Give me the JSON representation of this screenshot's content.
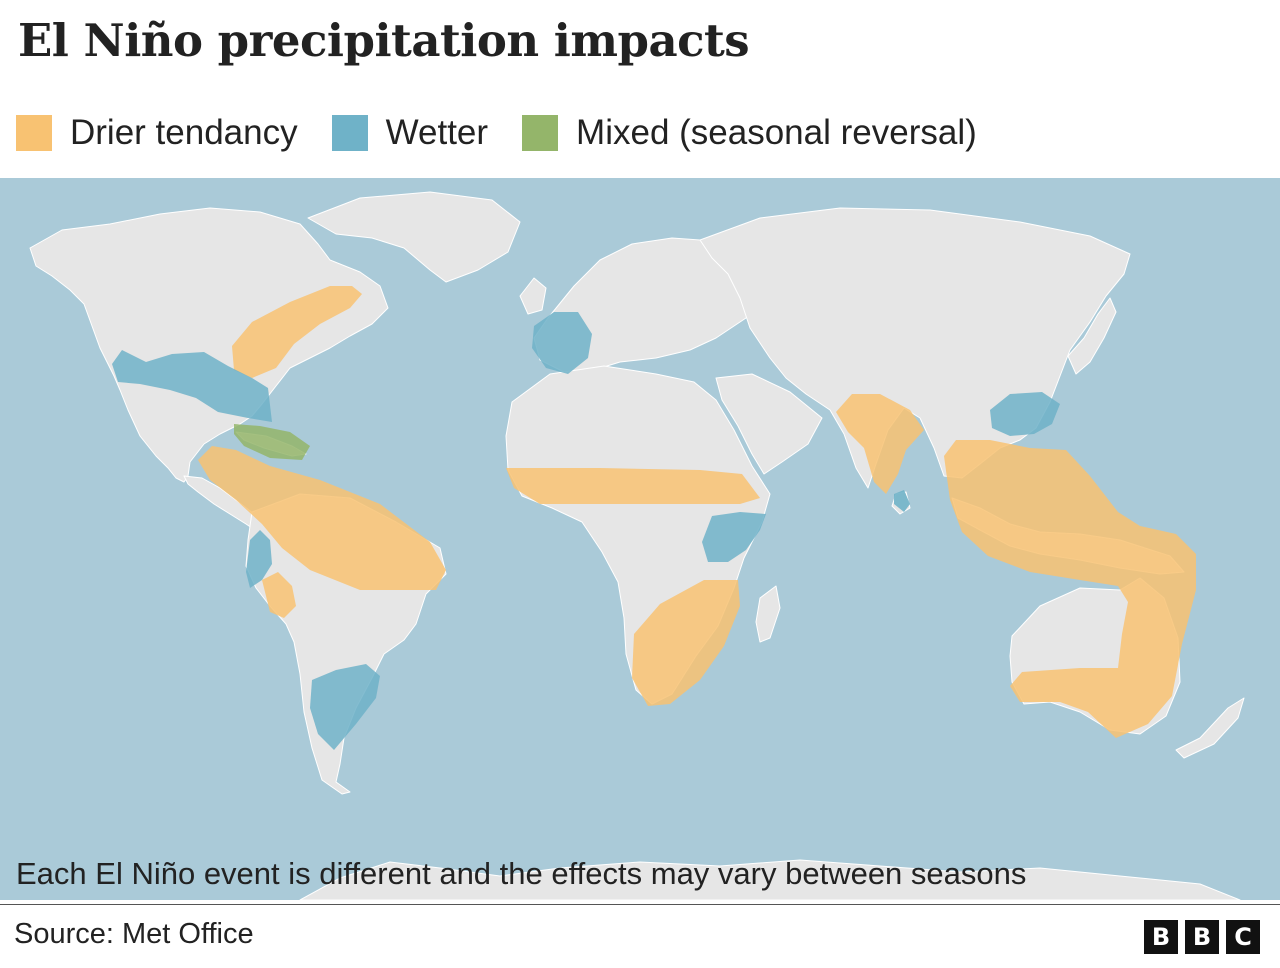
{
  "title": "El Niño precipitation impacts",
  "legend": [
    {
      "label": "Drier tendancy",
      "color": "#f8c272"
    },
    {
      "label": "Wetter",
      "color": "#6fb2c8"
    },
    {
      "label": "Mixed (seasonal reversal)",
      "color": "#94b56a"
    }
  ],
  "map": {
    "ocean_color": "#aacad8",
    "land_color": "#e6e6e6",
    "regions": [
      {
        "name": "Eastern North America",
        "category": "drier"
      },
      {
        "name": "Southern North America",
        "category": "wetter"
      },
      {
        "name": "Caribbean",
        "category": "mixed"
      },
      {
        "name": "Central America and northern South America",
        "category": "drier"
      },
      {
        "name": "Ecuador and northern Peru",
        "category": "wetter"
      },
      {
        "name": "Peru",
        "category": "drier"
      },
      {
        "name": "South-eastern South America",
        "category": "wetter"
      },
      {
        "name": "Iberian Peninsula",
        "category": "wetter"
      },
      {
        "name": "Sahel",
        "category": "drier"
      },
      {
        "name": "East Africa",
        "category": "wetter"
      },
      {
        "name": "Southern Africa",
        "category": "drier"
      },
      {
        "name": "India",
        "category": "drier"
      },
      {
        "name": "Sri Lanka",
        "category": "wetter"
      },
      {
        "name": "South-east China",
        "category": "wetter"
      },
      {
        "name": "South-east Asia and Indonesia",
        "category": "drier"
      },
      {
        "name": "Eastern Australia",
        "category": "drier"
      }
    ]
  },
  "note": "Each El Niño event is different and the effects may vary between seasons",
  "source": "Source: Met Office",
  "brand": [
    "B",
    "B",
    "C"
  ]
}
